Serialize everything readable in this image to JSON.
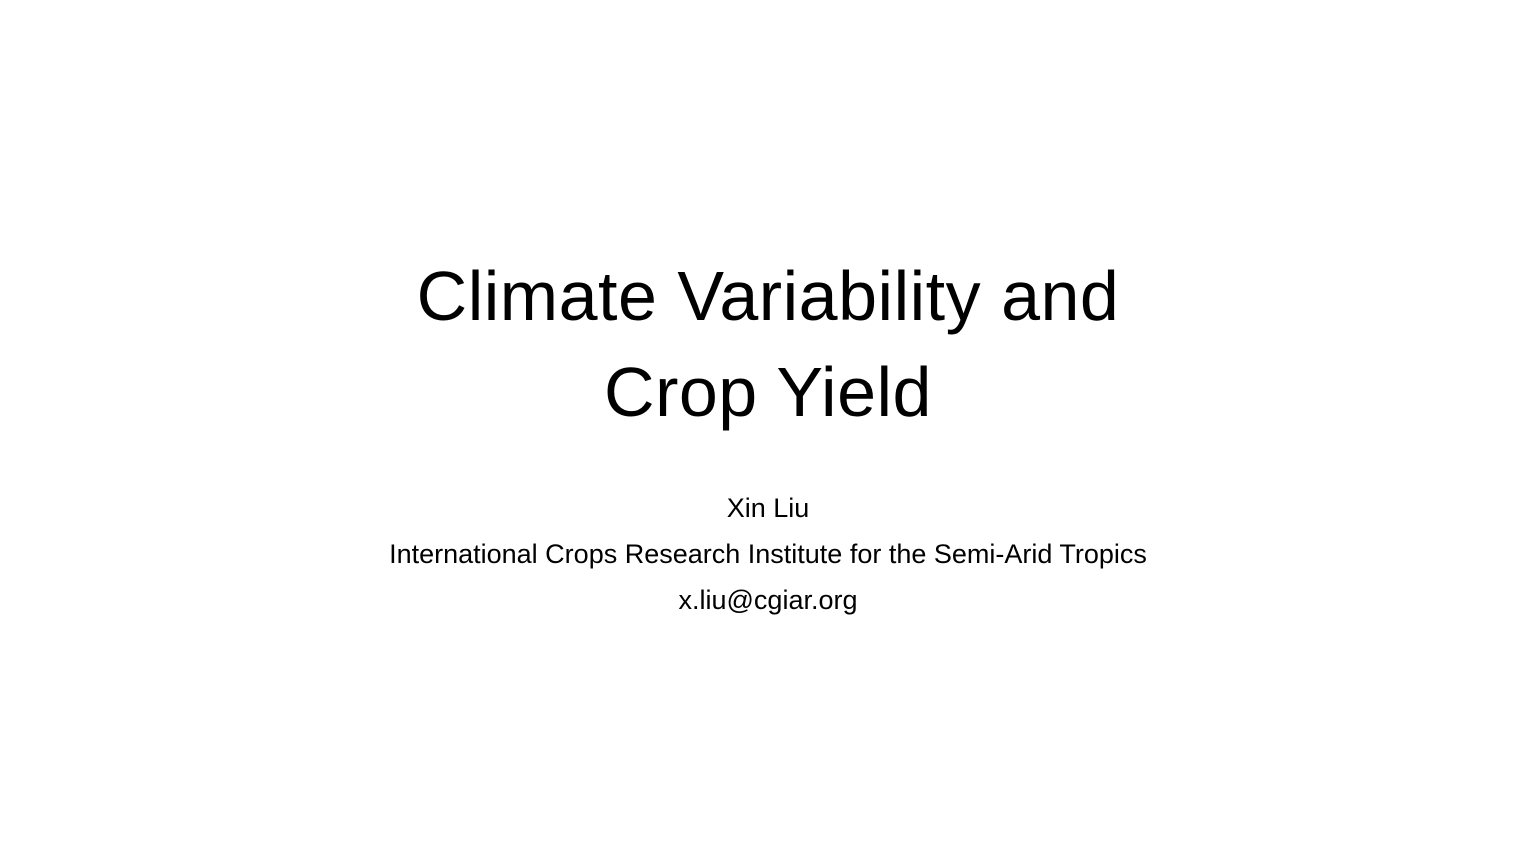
{
  "slide": {
    "title_lines": [
      "Climate Variability and",
      "Crop Yield"
    ],
    "author": "Xin Liu",
    "institution": "International Crops Research Institute for the Semi-Arid Tropics",
    "email": "x.liu@cgiar.org",
    "background_color": "#ffffff",
    "text_color": "#000000"
  }
}
